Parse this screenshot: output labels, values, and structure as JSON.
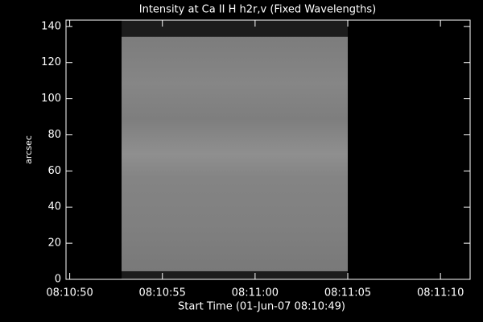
{
  "chart_data": {
    "type": "image",
    "title": "Intensity at Ca II H h2r,v (Fixed Wavelengths)",
    "xlabel": "Start Time (01-Jun-07 08:10:49)",
    "ylabel": "arcsec",
    "xlim": [
      0.8,
      22.6
    ],
    "ylim": [
      0,
      143.5
    ],
    "xticks": [
      {
        "value": 1,
        "label": "08:10:50"
      },
      {
        "value": 6,
        "label": "08:10:55"
      },
      {
        "value": 11,
        "label": "08:11:00"
      },
      {
        "value": 16,
        "label": "08:11:05"
      },
      {
        "value": 21,
        "label": "08:11:10"
      }
    ],
    "yticks": [
      0,
      20,
      40,
      60,
      80,
      100,
      120,
      140
    ],
    "image_x": [
      3.8,
      16.0
    ],
    "image_y": [
      4.5,
      134.2
    ],
    "background": "#000000",
    "frame_color": "#1c1c1c",
    "image_color": "#8a8a8a",
    "axis_color": "#ffffff"
  }
}
